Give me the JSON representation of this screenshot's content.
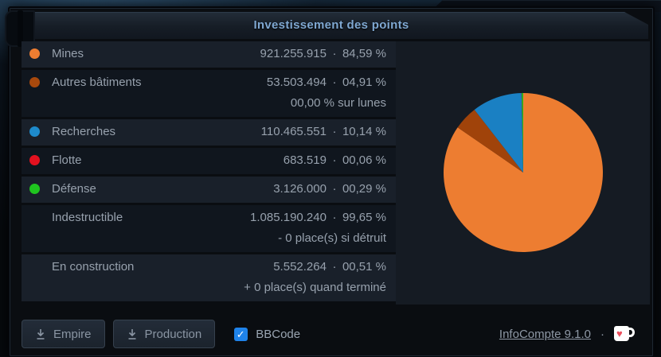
{
  "window": {
    "title": "Investissement des points"
  },
  "table": {
    "value_separator": "·",
    "rows": [
      {
        "label": "Mines",
        "dot_color": "#ed7d31",
        "value": "921.255.915",
        "percent": "84,59 %",
        "sub": null
      },
      {
        "label": "Autres bâtiments",
        "dot_color": "#a8490d",
        "value": "53.503.494",
        "percent": "04,91 %",
        "sub": "00,00 % sur lunes"
      },
      {
        "label": "Recherches",
        "dot_color": "#1e8bcc",
        "value": "110.465.551",
        "percent": "10,14 %",
        "sub": null
      },
      {
        "label": "Flotte",
        "dot_color": "#e3111f",
        "value": "683.519",
        "percent": "00,06 %",
        "sub": null
      },
      {
        "label": "Défense",
        "dot_color": "#1fc41f",
        "value": "3.126.000",
        "percent": "00,29 %",
        "sub": null
      },
      {
        "label": "Indestructible",
        "dot_color": null,
        "value": "1.085.190.240",
        "percent": "99,65 %",
        "sub": "- 0 place(s) si détruit"
      },
      {
        "label": "En construction",
        "dot_color": null,
        "value": "5.552.264",
        "percent": "00,51 %",
        "sub": "+ 0 place(s) quand terminé"
      }
    ]
  },
  "chart_data": {
    "type": "pie",
    "labels": [
      "Mines",
      "Autres bâtiments",
      "Recherches",
      "Flotte",
      "Défense"
    ],
    "values": [
      84.59,
      4.91,
      10.14,
      0.06,
      0.29
    ],
    "colors": [
      "#ed7d31",
      "#a0430a",
      "#1a80c3",
      "#e0141f",
      "#21c11e"
    ],
    "start_angle_deg": -90,
    "direction": "clockwise",
    "legend_position": "none",
    "title": ""
  },
  "footer": {
    "buttons": [
      {
        "label": "Empire"
      },
      {
        "label": "Production"
      }
    ],
    "bbcode": {
      "label": "BBCode",
      "checked": true,
      "accent": "#1f83ea"
    },
    "link": "InfoCompte 9.1.0",
    "separator": "·",
    "kofi_heart_color": "#ec4f5d"
  }
}
